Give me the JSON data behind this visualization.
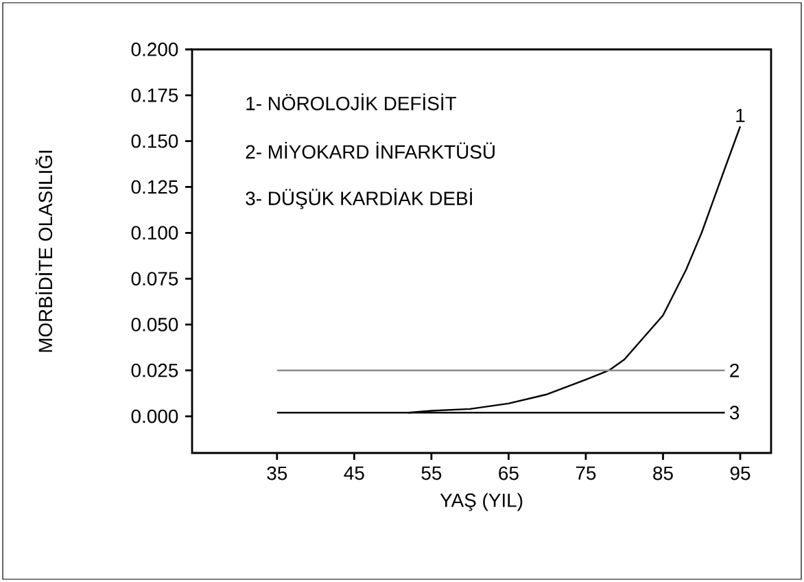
{
  "chart_data": {
    "type": "line",
    "xlabel": "YAŞ (YIL)",
    "ylabel": "MORBİDİTE OLASILIĞI",
    "annotations": [
      "1- NÖROLOJİK DEFİSİT",
      "2- MİYOKARD İNFARKTÜSÜ",
      "3- DÜŞÜK KARDİAK DEBİ"
    ],
    "series": [
      {
        "name": "1",
        "color": "#000000",
        "x": [
          52,
          55,
          60,
          65,
          70,
          75,
          78,
          80,
          85,
          88,
          90,
          93,
          95
        ],
        "values": [
          0.002,
          0.003,
          0.004,
          0.007,
          0.012,
          0.02,
          0.025,
          0.031,
          0.055,
          0.08,
          0.1,
          0.135,
          0.158
        ]
      },
      {
        "name": "2",
        "color": "#8c8c8c",
        "x": [
          35,
          93
        ],
        "values": [
          0.025,
          0.025
        ]
      },
      {
        "name": "3",
        "color": "#000000",
        "x": [
          35,
          93
        ],
        "values": [
          0.002,
          0.002
        ]
      }
    ],
    "xlim": [
      24,
      99
    ],
    "ylim": [
      -0.02,
      0.2
    ],
    "xticks": [
      35,
      45,
      55,
      65,
      75,
      85,
      95
    ],
    "yticks": [
      {
        "value": 0,
        "label": "0.000"
      },
      0.025,
      {
        "value": 0.05,
        "label": "0.050"
      },
      0.075,
      {
        "value": 0.1,
        "label": "0.100"
      },
      0.125,
      {
        "value": 0.15,
        "label": "0.150"
      },
      0.175,
      {
        "value": 0.2,
        "label": "0.200"
      }
    ],
    "grid": false,
    "marker": "none",
    "line_style": "solid"
  }
}
